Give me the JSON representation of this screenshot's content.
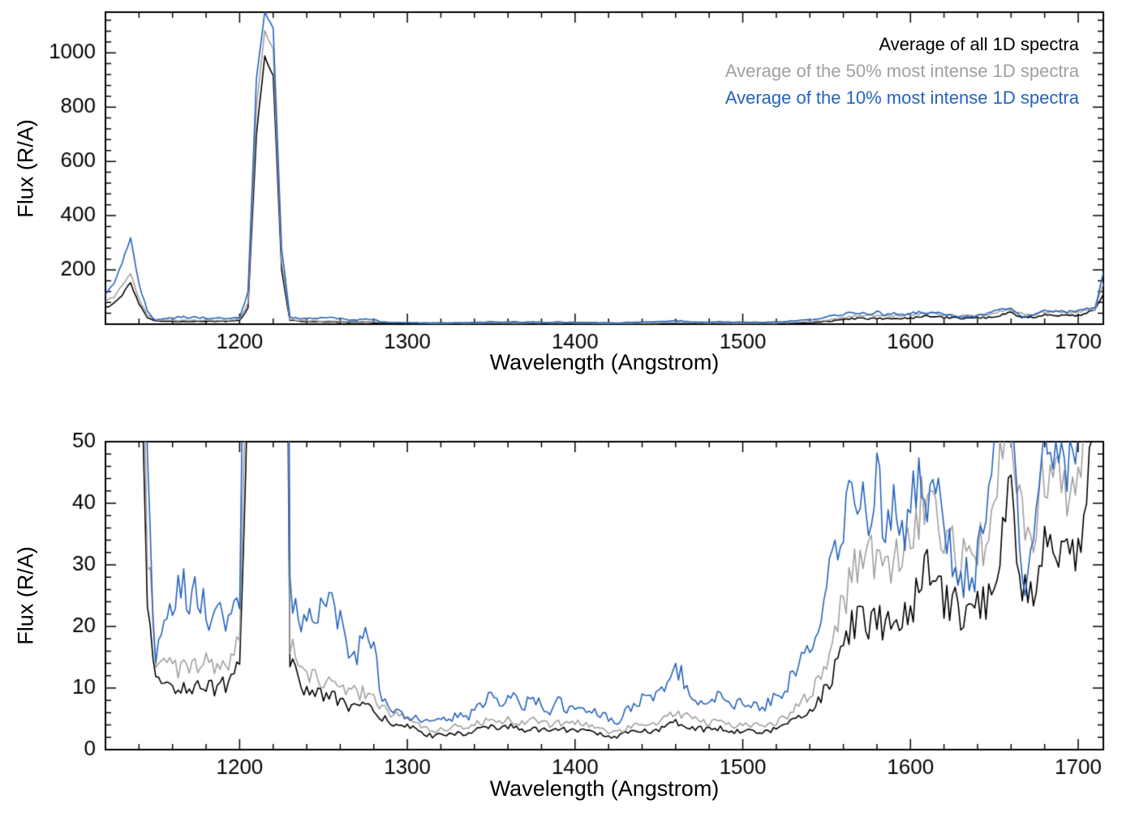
{
  "figure": {
    "background": "#ffffff"
  },
  "chart_data": {
    "type": "line",
    "title": "",
    "xlabel": "Wavelength (Angstrom)",
    "ylabel": "Flux (R/A)",
    "grid": false,
    "legend_position": "top-right",
    "noise": {
      "amplitude": 0.14,
      "cap": 5,
      "subsamples": 3,
      "seed": 12345
    },
    "x": [
      1120,
      1125,
      1130,
      1135,
      1140,
      1145,
      1150,
      1155,
      1160,
      1165,
      1170,
      1175,
      1180,
      1185,
      1190,
      1195,
      1200,
      1205,
      1210,
      1215,
      1220,
      1225,
      1230,
      1235,
      1240,
      1245,
      1250,
      1255,
      1260,
      1265,
      1270,
      1275,
      1280,
      1285,
      1290,
      1295,
      1300,
      1305,
      1310,
      1315,
      1320,
      1325,
      1330,
      1335,
      1340,
      1345,
      1350,
      1355,
      1360,
      1365,
      1370,
      1375,
      1380,
      1385,
      1390,
      1395,
      1400,
      1405,
      1410,
      1415,
      1420,
      1425,
      1430,
      1435,
      1440,
      1445,
      1450,
      1455,
      1460,
      1465,
      1470,
      1475,
      1480,
      1485,
      1490,
      1495,
      1500,
      1505,
      1510,
      1515,
      1520,
      1525,
      1530,
      1535,
      1540,
      1545,
      1550,
      1555,
      1560,
      1565,
      1570,
      1575,
      1580,
      1585,
      1590,
      1595,
      1600,
      1605,
      1610,
      1615,
      1620,
      1625,
      1630,
      1635,
      1640,
      1645,
      1650,
      1655,
      1660,
      1665,
      1670,
      1675,
      1680,
      1685,
      1690,
      1695,
      1700,
      1705,
      1710,
      1715
    ],
    "series": [
      {
        "name": "Average of all 1D spectra",
        "color": "#000000",
        "values": [
          60,
          75,
          110,
          150,
          70,
          25,
          11,
          10,
          10.5,
          10,
          10.5,
          10,
          11,
          10,
          10.5,
          11,
          14,
          60,
          700,
          985,
          920,
          200,
          14,
          11,
          10,
          9.5,
          8.5,
          8.8,
          7.5,
          7.2,
          7,
          6.8,
          6.2,
          5,
          4.5,
          4.2,
          3.8,
          3.2,
          2.6,
          2.2,
          2.4,
          2.6,
          2.8,
          2.5,
          3,
          3.4,
          3.6,
          3.2,
          3.8,
          3.5,
          3.3,
          3.6,
          3.2,
          3,
          3.4,
          3.1,
          3.3,
          3,
          2.8,
          2.6,
          2.2,
          2,
          2.6,
          3,
          3.2,
          3,
          3.4,
          4,
          4.6,
          4.2,
          3.6,
          3.4,
          3.2,
          3.5,
          3.2,
          3,
          3.2,
          3,
          2.8,
          3,
          3.4,
          4,
          4.6,
          5.4,
          6.5,
          8,
          10,
          13,
          17,
          20,
          21,
          20,
          21.5,
          20,
          20.5,
          21,
          22,
          26,
          28.5,
          26.5,
          24.5,
          23.5,
          22.5,
          22,
          23,
          24.5,
          26,
          38,
          44,
          30,
          23.5,
          27,
          33,
          30,
          31.5,
          30,
          32,
          44,
          50,
          110
        ]
      },
      {
        "name": "Average of the 50% most intense 1D spectra",
        "color": "#a0a0a0",
        "values": [
          80,
          100,
          145,
          190,
          90,
          32,
          14,
          13,
          13.5,
          13,
          13.5,
          13,
          14,
          13,
          13.5,
          14,
          18,
          80,
          800,
          1080,
          1010,
          230,
          17,
          13.5,
          12.5,
          12,
          11,
          11.5,
          10,
          9.5,
          9.2,
          9,
          8.2,
          6.5,
          5.8,
          5.4,
          4.8,
          4.2,
          3.6,
          3,
          3.2,
          3.5,
          3.8,
          3.4,
          4,
          4.5,
          4.8,
          4.3,
          5,
          4.6,
          4.4,
          4.8,
          4.3,
          4,
          4.5,
          4.2,
          4.4,
          4,
          3.8,
          3.5,
          3,
          2.8,
          3.5,
          4,
          4.3,
          4,
          4.6,
          5.2,
          6,
          5.5,
          4.8,
          4.5,
          4.3,
          4.6,
          4.3,
          4,
          4.3,
          4,
          3.8,
          4,
          4.6,
          5.4,
          6.3,
          7.5,
          9,
          11.5,
          15,
          19,
          24,
          28,
          30,
          33,
          28.5,
          29.5,
          31,
          30,
          33,
          38,
          43,
          40,
          35,
          32,
          30.5,
          30,
          32,
          35,
          38,
          50,
          55,
          40,
          33,
          38,
          45,
          42,
          44,
          42,
          45,
          52,
          55,
          150
        ]
      },
      {
        "name": "Average of the 10% most intense 1D spectra",
        "color": "#2563bd",
        "values": [
          110,
          150,
          230,
          320,
          150,
          45,
          13,
          22,
          25,
          27,
          24,
          25,
          22,
          23,
          21,
          22,
          26,
          120,
          900,
          1150,
          1090,
          280,
          26,
          22,
          20,
          21,
          24,
          26,
          21,
          17,
          16,
          19,
          16,
          8.5,
          7,
          6,
          5.2,
          5,
          4.5,
          4.2,
          4.8,
          5.2,
          5.6,
          5,
          6.5,
          7.5,
          8.5,
          7,
          8.8,
          7.8,
          7.2,
          8.2,
          7,
          6.4,
          7.6,
          6.8,
          7.4,
          6.6,
          6.2,
          5.8,
          5,
          4.6,
          6,
          7.5,
          8.5,
          8,
          9,
          11,
          13,
          11.5,
          9,
          8,
          7.5,
          8.5,
          8,
          7.2,
          7.8,
          7.2,
          6.8,
          7.4,
          8.5,
          10,
          12,
          14.5,
          17.5,
          21,
          26,
          30,
          36,
          41,
          43,
          38,
          45,
          36,
          40,
          35,
          39,
          44,
          38,
          42,
          35,
          31,
          29,
          28,
          30,
          36,
          48,
          58,
          60,
          30,
          27,
          40,
          50,
          46,
          48,
          46,
          50,
          55,
          58,
          190
        ]
      }
    ],
    "panels": [
      {
        "name": "full-scale",
        "xlim": [
          1120,
          1715
        ],
        "ylim": [
          0,
          1150
        ],
        "xticks": [
          1200,
          1300,
          1400,
          1500,
          1600,
          1700
        ],
        "yticks": [
          200,
          400,
          600,
          800,
          1000
        ],
        "xminor": 20,
        "yminor": 40,
        "legend": true
      },
      {
        "name": "zoom",
        "xlim": [
          1120,
          1715
        ],
        "ylim": [
          0,
          50
        ],
        "xticks": [
          1200,
          1300,
          1400,
          1500,
          1600,
          1700
        ],
        "yticks": [
          0,
          10,
          20,
          30,
          40,
          50
        ],
        "xminor": 20,
        "yminor": 2,
        "legend": false
      }
    ]
  }
}
